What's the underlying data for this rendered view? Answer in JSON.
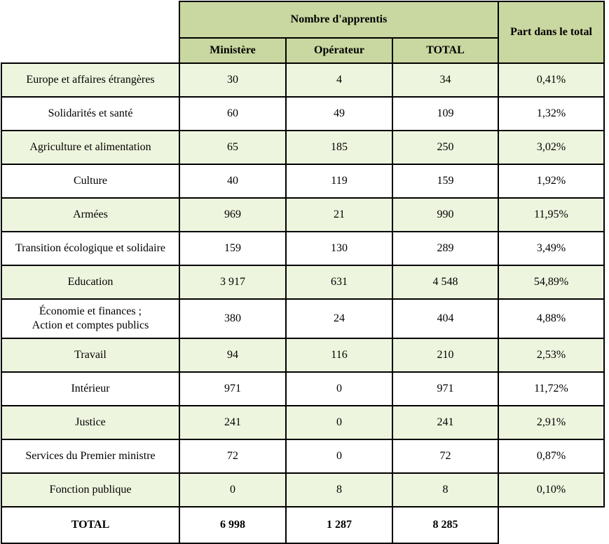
{
  "header": {
    "group": "Nombre d'apprentis",
    "share": "Part dans le total",
    "cols": [
      "Ministère",
      "Opérateur",
      "TOTAL"
    ]
  },
  "rows": [
    {
      "label": "Europe et affaires étrangères",
      "ministere": "30",
      "operateur": "4",
      "total": "34",
      "part": "0,41%"
    },
    {
      "label": "Solidarités et santé",
      "ministere": "60",
      "operateur": "49",
      "total": "109",
      "part": "1,32%"
    },
    {
      "label": "Agriculture et alimentation",
      "ministere": "65",
      "operateur": "185",
      "total": "250",
      "part": "3,02%"
    },
    {
      "label": "Culture",
      "ministere": "40",
      "operateur": "119",
      "total": "159",
      "part": "1,92%"
    },
    {
      "label": "Armées",
      "ministere": "969",
      "operateur": "21",
      "total": "990",
      "part": "11,95%"
    },
    {
      "label": "Transition écologique et solidaire",
      "ministere": "159",
      "operateur": "130",
      "total": "289",
      "part": "3,49%"
    },
    {
      "label": "Education",
      "ministere": "3 917",
      "operateur": "631",
      "total": "4 548",
      "part": "54,89%"
    },
    {
      "label": "Économie et finances ;",
      "label2": "Action et comptes publics",
      "ministere": "380",
      "operateur": "24",
      "total": "404",
      "part": "4,88%"
    },
    {
      "label": "Travail",
      "ministere": "94",
      "operateur": "116",
      "total": "210",
      "part": "2,53%"
    },
    {
      "label": "Intérieur",
      "ministere": "971",
      "operateur": "0",
      "total": "971",
      "part": "11,72%"
    },
    {
      "label": "Justice",
      "ministere": "241",
      "operateur": "0",
      "total": "241",
      "part": "2,91%"
    },
    {
      "label": "Services du Premier ministre",
      "ministere": "72",
      "operateur": "0",
      "total": "72",
      "part": "0,87%"
    },
    {
      "label": "Fonction publique",
      "ministere": "0",
      "operateur": "8",
      "total": "8",
      "part": "0,10%"
    }
  ],
  "totals": {
    "label": "TOTAL",
    "ministere": "6 998",
    "operateur": "1 287",
    "total": "8 285"
  }
}
